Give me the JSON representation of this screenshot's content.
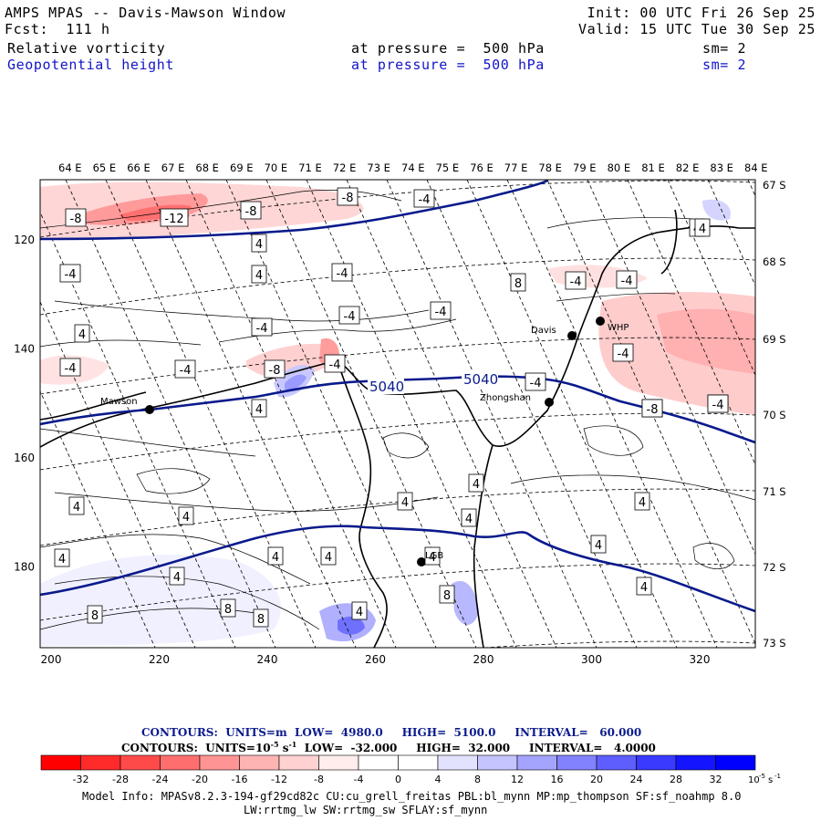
{
  "header": {
    "title": "AMPS MPAS -- Davis-Mawson Window",
    "fcst": "Fcst:  111 h",
    "init": "Init: 00 UTC Fri 26 Sep 25",
    "valid": "Valid: 15 UTC Tue 30 Sep 25",
    "field1": {
      "name": "Relative vorticity",
      "level": "at pressure =  500 hPa",
      "sm": "sm= 2"
    },
    "field2": {
      "name": "Geopotential height",
      "level": "at pressure =  500 hPa",
      "sm": "sm= 2"
    }
  },
  "map": {
    "top_longitudes": [
      "64 E",
      "65 E",
      "66 E",
      "67 E",
      "68 E",
      "69 E",
      "70 E",
      "71 E",
      "72 E",
      "73 E",
      "74 E",
      "75 E",
      "76 E",
      "77 E",
      "78 E",
      "79 E",
      "80 E",
      "81 E",
      "82 E",
      "83 E",
      "84 E"
    ],
    "right_latitudes": [
      "67 S",
      "68 S",
      "69 S",
      "70 S",
      "71 S",
      "72 S",
      "73 S"
    ],
    "x_ticks": [
      "200",
      "220",
      "240",
      "260",
      "280",
      "300",
      "320"
    ],
    "y_ticks": [
      "120",
      "140",
      "160",
      "180"
    ],
    "stations": [
      {
        "name": "Davis"
      },
      {
        "name": "WHP"
      },
      {
        "name": "Mawson"
      },
      {
        "name": "Zhongshan"
      },
      {
        "name": "LGB"
      }
    ],
    "height_labels": [
      "5040",
      "5040"
    ],
    "vorticity_labels": [
      "-8",
      "-12",
      "-8",
      "-8",
      "-4",
      "-4",
      "-4",
      "-4",
      "-4",
      "-4",
      "-4",
      "-4",
      "-4",
      "-4",
      "-4",
      "-4",
      "-4",
      "-4",
      "-4",
      "-8",
      "-4",
      "-8",
      "4",
      "4",
      "4",
      "4",
      "4",
      "4",
      "4",
      "4",
      "4",
      "4",
      "4",
      "4",
      "4",
      "4",
      "4",
      "4",
      "4",
      "4",
      "4",
      "4",
      "8",
      "8",
      "8",
      "8",
      "8"
    ],
    "colors": {
      "height_contour": "#0a1a8c",
      "negative": "#ff0000",
      "positive": "#0000ff",
      "coast": "#000000"
    }
  },
  "footer": {
    "contours1": "CONTOURS:  UNITS=m  LOW=  4980.0     HIGH=  5100.0     INTERVAL=   60.000",
    "contours2": "CONTOURS:  UNITS=10",
    "contours2_rest": "  LOW=  -32.000     HIGH=  32.000     INTERVAL=   4.0000",
    "colorbar_ticks": [
      "-32",
      "-28",
      "-24",
      "-20",
      "-16",
      "-12",
      "-8",
      "-4",
      "0",
      "4",
      "8",
      "12",
      "16",
      "20",
      "24",
      "28",
      "32"
    ],
    "colorbar_colors": [
      "#ff0000",
      "#ff2a2a",
      "#ff4a4a",
      "#ff6e6e",
      "#ff9494",
      "#ffb4b4",
      "#ffd2d2",
      "#ffecec",
      "#ffffff",
      "#ffffff",
      "#e2e2ff",
      "#c4c4ff",
      "#a4a4ff",
      "#8282ff",
      "#5e5eff",
      "#3a3aff",
      "#1414ff",
      "#0000ff"
    ],
    "colorbar_unit": "10",
    "model_info": "Model Info: MPASv8.2.3-194-gf29cd82c CU:cu_grell_freitas PBL:bl_mynn MP:mp_thompson SF:sf_noahmp 8.0",
    "model_info2": "LW:rrtmg_lw SW:rrtmg_sw SFLAY:sf_mynn"
  }
}
